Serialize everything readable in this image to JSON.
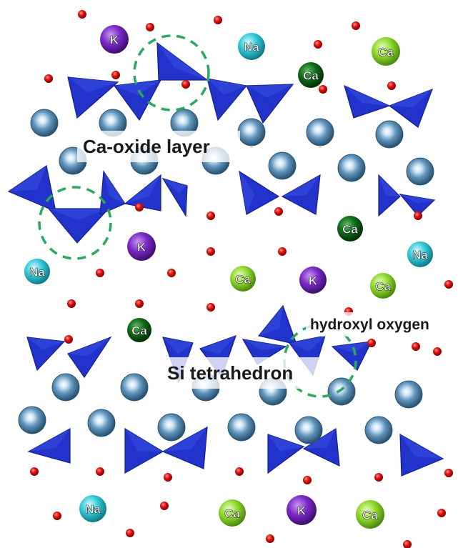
{
  "labels": {
    "ca_oxide_layer": "Ca-oxide layer",
    "hydroxyl_oxygen": "hydroxyl oxygen",
    "si_tetrahedron": "Si tetrahedron"
  },
  "ions": {
    "K": "K",
    "Na": "Na",
    "Ca": "Ca"
  },
  "colors": {
    "si_tetrahedron": "#2233cc",
    "ca_oxide_sphere": "#4a86b0",
    "oxygen": "#e01010",
    "K": "#7b28c8",
    "Na": "#30c8d8",
    "Ca_light": "#8ed82c",
    "Ca_dark": "#0f6a18",
    "highlight_ring": "#2aa860"
  }
}
